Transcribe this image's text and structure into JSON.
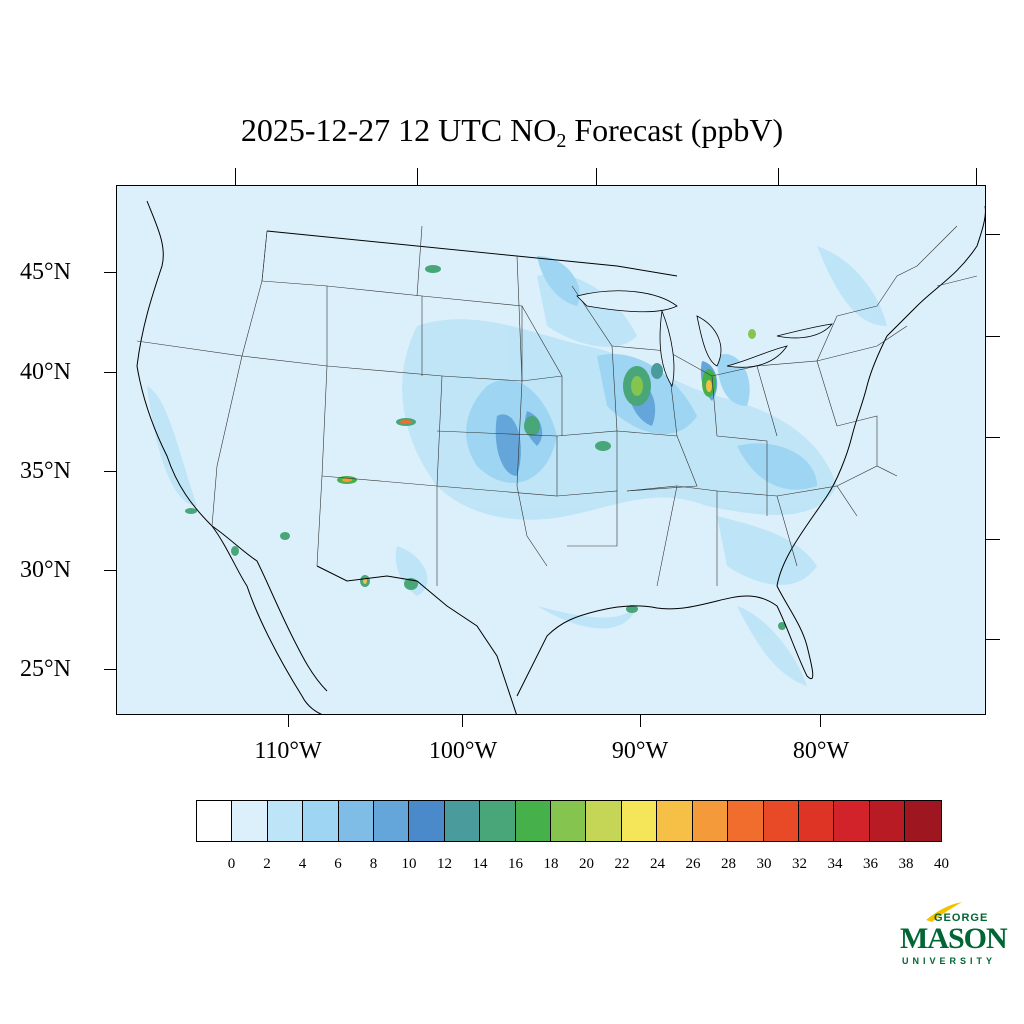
{
  "title": {
    "main": "2025-12-27 12 UTC NO",
    "sub": "2",
    "rest": " Forecast (ppbV)"
  },
  "lat_labels": [
    "45°N",
    "40°N",
    "35°N",
    "30°N",
    "25°N"
  ],
  "lon_labels": [
    "110°W",
    "100°W",
    "90°W",
    "80°W"
  ],
  "colorbar": {
    "labels": [
      "0",
      "2",
      "4",
      "6",
      "8",
      "10",
      "12",
      "14",
      "16",
      "18",
      "20",
      "22",
      "24",
      "26",
      "28",
      "30",
      "32",
      "34",
      "36",
      "38",
      "40"
    ],
    "colors": [
      "#ffffff",
      "#dcf0fb",
      "#bde4f7",
      "#9dd5f3",
      "#7fbde6",
      "#65a6da",
      "#4a8acb",
      "#4a9b9c",
      "#48a678",
      "#46b04a",
      "#85c44f",
      "#c5d656",
      "#f5e659",
      "#f6c047",
      "#f59a3a",
      "#f16d2d",
      "#e84a28",
      "#dd3426",
      "#d2222a",
      "#b81b24",
      "#9e1620"
    ]
  },
  "logo": {
    "top": "GEORGE",
    "main": "MASON",
    "bottom": "UNIVERSITY"
  }
}
